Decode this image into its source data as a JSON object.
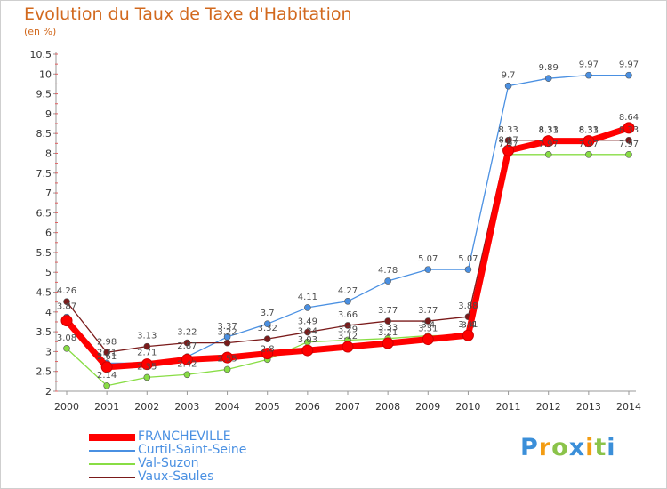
{
  "header": {
    "title": "Evolution du Taux de Taxe d'Habitation",
    "unit": "(en %)"
  },
  "chart_data": {
    "type": "line",
    "title": "Evolution du Taux de Taxe d'Habitation",
    "ylabel": "(en %)",
    "xlabel": "",
    "x": [
      "2000",
      "2001",
      "2002",
      "2003",
      "2004",
      "2005",
      "2006",
      "2007",
      "2008",
      "2009",
      "2010",
      "2011",
      "2012",
      "2013",
      "2014"
    ],
    "ylim": [
      2,
      10.5
    ],
    "yticks": [
      "2",
      "2.5",
      "3",
      "3.5",
      "4",
      "4.5",
      "5",
      "5.5",
      "6",
      "6.5",
      "7",
      "7.5",
      "8",
      "8.5",
      "9",
      "9.5",
      "10",
      "10.5"
    ],
    "grid": false,
    "legend": "bottom-left",
    "series": [
      {
        "name": "FRANCHEVILLE",
        "color": "#ff0000",
        "values": [
          3.78,
          2.61,
          2.68,
          2.8,
          2.85,
          2.95,
          3.03,
          3.12,
          3.21,
          3.31,
          3.41,
          8.07,
          8.31,
          8.31,
          8.64
        ],
        "labels": [
          "",
          "2.61",
          "",
          "",
          "",
          "",
          "3.03",
          "3.12",
          "3.21",
          "3.31",
          "3.41",
          "8.07",
          "8.31",
          "8.31",
          "8.64"
        ]
      },
      {
        "name": "Curtil-Saint-Seine",
        "color": "#4a90e2",
        "values": [
          3.87,
          2.71,
          2.71,
          2.87,
          3.37,
          3.7,
          4.11,
          4.27,
          4.78,
          5.07,
          5.07,
          9.7,
          9.89,
          9.97,
          9.97
        ],
        "labels": [
          "3.87",
          "2.71",
          "2.71",
          "2.87",
          "3.37",
          "3.7",
          "4.11",
          "4.27",
          "4.78",
          "5.07",
          "5.07",
          "9.7",
          "9.89",
          "9.97",
          "9.97"
        ]
      },
      {
        "name": "Val-Suzon",
        "color": "#88dd44",
        "values": [
          3.08,
          2.14,
          2.35,
          2.42,
          2.55,
          2.8,
          3.24,
          3.29,
          3.33,
          3.4,
          3.4,
          7.97,
          7.97,
          7.97,
          7.97
        ],
        "labels": [
          "3.08",
          "2.14",
          "2.35",
          "2.42",
          "2.55",
          "2.8",
          "3.24",
          "3.29",
          "3.33",
          "3.4",
          "3.4",
          "7.97",
          "7.97",
          "7.97",
          "7.97"
        ]
      },
      {
        "name": "Vaux-Saules",
        "color": "#7a1a1a",
        "values": [
          4.26,
          2.98,
          3.13,
          3.22,
          3.22,
          3.32,
          3.49,
          3.66,
          3.77,
          3.77,
          3.88,
          8.33,
          8.33,
          8.33,
          8.33
        ],
        "labels": [
          "4.26",
          "2.98",
          "3.13",
          "3.22",
          "3.22",
          "3.32",
          "3.49",
          "3.66",
          "3.77",
          "3.77",
          "3.88",
          "8.33",
          "8.33",
          "8.33",
          "8.33"
        ]
      }
    ]
  },
  "logo": {
    "letters": [
      "P",
      "r",
      "o",
      "x",
      "i",
      "t",
      "i"
    ],
    "colors": [
      "#3b8fd9",
      "#f39c12",
      "#8bc34a",
      "#3b8fd9",
      "#f39c12",
      "#8bc34a",
      "#3b8fd9"
    ]
  }
}
